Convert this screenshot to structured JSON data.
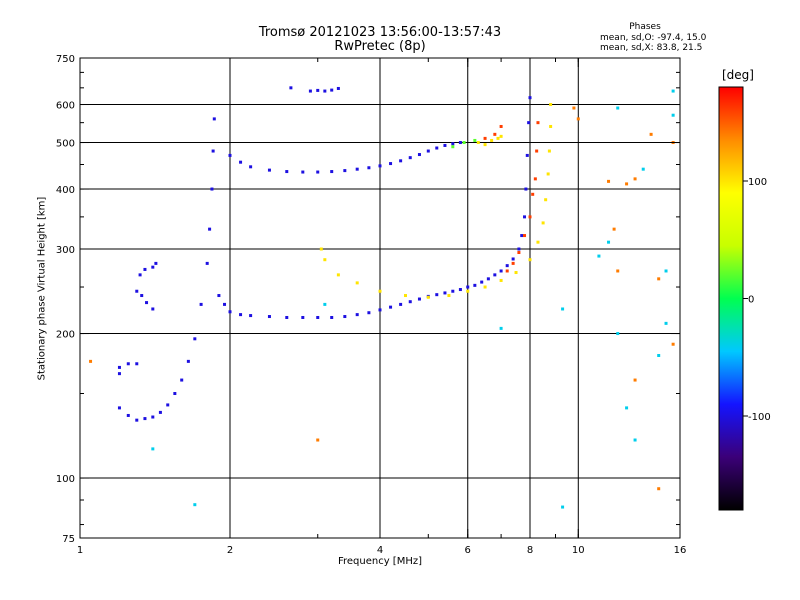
{
  "header": {
    "title_line1": "Tromsø 20121023 13:56:00-13:57:43",
    "title_line2": "RwPretec (8p)"
  },
  "stats": {
    "heading": "Phases",
    "line_o": "mean, sd,O: -97.4, 15.0",
    "line_x": "mean, sd,X:  83.8, 21.5"
  },
  "colorbar": {
    "label": "[deg]",
    "range": [
      -180,
      180
    ],
    "ticks": [
      {
        "value": 100,
        "label": "100"
      },
      {
        "value": 0,
        "label": "0"
      },
      {
        "value": -100,
        "label": "-100"
      }
    ],
    "colors": [
      "#000000",
      "#3b0078",
      "#1414ff",
      "#00c8ff",
      "#00ff50",
      "#c8ff00",
      "#ffff00",
      "#ff8c00",
      "#ff0000"
    ]
  },
  "chart_data": {
    "type": "scatter",
    "title": "Tromsø 20121023 13:56:00-13:57:43",
    "subtitle": "RwPretec (8p)",
    "xlabel": "Frequency [MHz]",
    "ylabel": "Stationary phase Virtual Height [km]",
    "x_scale": "log",
    "y_scale": "log",
    "xlim": [
      1,
      16
    ],
    "ylim": [
      75,
      750
    ],
    "grid": true,
    "x_ticks": [
      {
        "value": 1,
        "label": "1"
      },
      {
        "value": 2,
        "label": "2"
      },
      {
        "value": 4,
        "label": "4"
      },
      {
        "value": 6,
        "label": "6"
      },
      {
        "value": 8,
        "label": "8"
      },
      {
        "value": 10,
        "label": "10"
      },
      {
        "value": 16,
        "label": "16"
      }
    ],
    "y_ticks": [
      {
        "value": 75,
        "label": "75"
      },
      {
        "value": 100,
        "label": "100"
      },
      {
        "value": 200,
        "label": "200"
      },
      {
        "value": 300,
        "label": "300"
      },
      {
        "value": 400,
        "label": "400"
      },
      {
        "value": 500,
        "label": "500"
      },
      {
        "value": 600,
        "label": "600"
      },
      {
        "value": 750,
        "label": "750"
      }
    ],
    "gridlines_x": [
      2,
      4,
      6,
      8,
      10
    ],
    "gridlines_y": [
      100,
      200,
      300,
      400,
      500,
      600
    ],
    "series": [
      {
        "color_value": -100,
        "trace_points": [
          [
            1.2,
            170
          ],
          [
            1.2,
            165
          ],
          [
            1.25,
            173
          ],
          [
            1.3,
            173
          ],
          [
            1.2,
            140
          ],
          [
            1.25,
            135
          ],
          [
            1.3,
            132
          ],
          [
            1.35,
            133
          ],
          [
            1.4,
            134
          ],
          [
            1.45,
            137
          ],
          [
            1.5,
            142
          ],
          [
            1.55,
            150
          ],
          [
            1.6,
            160
          ],
          [
            1.65,
            175
          ],
          [
            1.7,
            195
          ],
          [
            1.75,
            230
          ],
          [
            1.8,
            280
          ],
          [
            1.82,
            330
          ],
          [
            1.84,
            400
          ],
          [
            1.85,
            480
          ],
          [
            1.86,
            560
          ],
          [
            1.32,
            265
          ],
          [
            1.35,
            272
          ],
          [
            1.4,
            275
          ],
          [
            1.42,
            280
          ],
          [
            1.3,
            245
          ],
          [
            1.33,
            240
          ],
          [
            1.36,
            232
          ],
          [
            1.4,
            225
          ],
          [
            1.9,
            240
          ],
          [
            1.95,
            230
          ],
          [
            2.0,
            222
          ],
          [
            2.1,
            219
          ],
          [
            2.2,
            218
          ],
          [
            2.4,
            217
          ],
          [
            2.6,
            216
          ],
          [
            2.8,
            216
          ],
          [
            3.0,
            216
          ],
          [
            3.2,
            216
          ],
          [
            3.4,
            217
          ],
          [
            3.6,
            219
          ],
          [
            3.8,
            221
          ],
          [
            4.0,
            224
          ],
          [
            4.2,
            227
          ],
          [
            4.4,
            230
          ],
          [
            4.6,
            233
          ],
          [
            4.8,
            236
          ],
          [
            5.0,
            239
          ],
          [
            5.2,
            241
          ],
          [
            5.4,
            243
          ],
          [
            5.6,
            245
          ],
          [
            5.8,
            247
          ],
          [
            6.0,
            250
          ],
          [
            6.2,
            252
          ],
          [
            6.4,
            256
          ],
          [
            6.6,
            260
          ],
          [
            6.8,
            265
          ],
          [
            7.0,
            270
          ],
          [
            7.2,
            277
          ],
          [
            7.4,
            286
          ],
          [
            7.6,
            300
          ],
          [
            7.7,
            320
          ],
          [
            7.8,
            350
          ],
          [
            7.85,
            400
          ],
          [
            7.9,
            470
          ],
          [
            7.95,
            550
          ],
          [
            8.0,
            620
          ],
          [
            2.0,
            470
          ],
          [
            2.1,
            455
          ],
          [
            2.2,
            445
          ],
          [
            2.4,
            438
          ],
          [
            2.6,
            435
          ],
          [
            2.8,
            434
          ],
          [
            3.0,
            434
          ],
          [
            3.2,
            435
          ],
          [
            3.4,
            437
          ],
          [
            3.6,
            440
          ],
          [
            3.8,
            443
          ],
          [
            4.0,
            447
          ],
          [
            4.2,
            452
          ],
          [
            4.4,
            458
          ],
          [
            4.6,
            465
          ],
          [
            4.8,
            472
          ],
          [
            5.0,
            480
          ],
          [
            5.2,
            487
          ],
          [
            5.4,
            493
          ],
          [
            5.6,
            497
          ],
          [
            5.8,
            500
          ],
          [
            2.65,
            650
          ],
          [
            2.9,
            640
          ],
          [
            3.0,
            642
          ],
          [
            3.1,
            640
          ],
          [
            3.2,
            643
          ],
          [
            3.3,
            648
          ]
        ]
      },
      {
        "color_value": 100,
        "trace_points": [
          [
            3.05,
            300
          ],
          [
            3.1,
            285
          ],
          [
            3.3,
            265
          ],
          [
            3.6,
            255
          ],
          [
            4.0,
            245
          ],
          [
            4.5,
            240
          ],
          [
            5.0,
            238
          ],
          [
            5.5,
            240
          ],
          [
            6.0,
            245
          ],
          [
            6.5,
            250
          ],
          [
            7.0,
            258
          ],
          [
            7.5,
            268
          ],
          [
            8.0,
            285
          ],
          [
            8.3,
            310
          ],
          [
            8.5,
            340
          ],
          [
            8.6,
            380
          ],
          [
            8.7,
            430
          ],
          [
            8.75,
            480
          ],
          [
            8.8,
            540
          ],
          [
            8.8,
            600
          ],
          [
            6.3,
            500
          ],
          [
            6.5,
            495
          ],
          [
            6.7,
            505
          ],
          [
            6.9,
            510
          ],
          [
            7.0,
            515
          ]
        ]
      },
      {
        "color_value": 160,
        "trace_points": [
          [
            7.2,
            270
          ],
          [
            7.4,
            280
          ],
          [
            7.6,
            295
          ],
          [
            7.8,
            320
          ],
          [
            8.0,
            350
          ],
          [
            8.1,
            390
          ],
          [
            8.2,
            420
          ],
          [
            8.25,
            480
          ],
          [
            8.3,
            550
          ],
          [
            6.5,
            510
          ],
          [
            6.8,
            520
          ],
          [
            7.0,
            540
          ]
        ]
      },
      {
        "color_value": 20,
        "trace_points": [
          [
            5.6,
            490
          ],
          [
            5.9,
            500
          ],
          [
            6.2,
            505
          ]
        ]
      },
      {
        "color_value": -40,
        "trace_points": [
          [
            1.4,
            115
          ],
          [
            1.7,
            88
          ],
          [
            3.1,
            230
          ],
          [
            7.0,
            205
          ],
          [
            9.3,
            87
          ],
          [
            9.3,
            225
          ],
          [
            11.0,
            290
          ],
          [
            11.5,
            310
          ],
          [
            12.0,
            200
          ],
          [
            12.5,
            140
          ],
          [
            13.5,
            440
          ],
          [
            13.0,
            120
          ],
          [
            15.0,
            270
          ],
          [
            15.5,
            640
          ],
          [
            15.0,
            210
          ],
          [
            14.5,
            180
          ],
          [
            15.5,
            570
          ],
          [
            12.0,
            590
          ]
        ]
      },
      {
        "color_value": 140,
        "trace_points": [
          [
            1.05,
            175
          ],
          [
            3.0,
            120
          ],
          [
            11.5,
            415
          ],
          [
            11.8,
            330
          ],
          [
            12.5,
            410
          ],
          [
            13.0,
            420
          ],
          [
            14.5,
            95
          ],
          [
            15.5,
            190
          ],
          [
            15.5,
            500
          ],
          [
            14.0,
            520
          ],
          [
            13.0,
            160
          ],
          [
            9.8,
            590
          ],
          [
            10.0,
            560
          ],
          [
            12.0,
            270
          ],
          [
            14.5,
            260
          ]
        ]
      }
    ]
  }
}
